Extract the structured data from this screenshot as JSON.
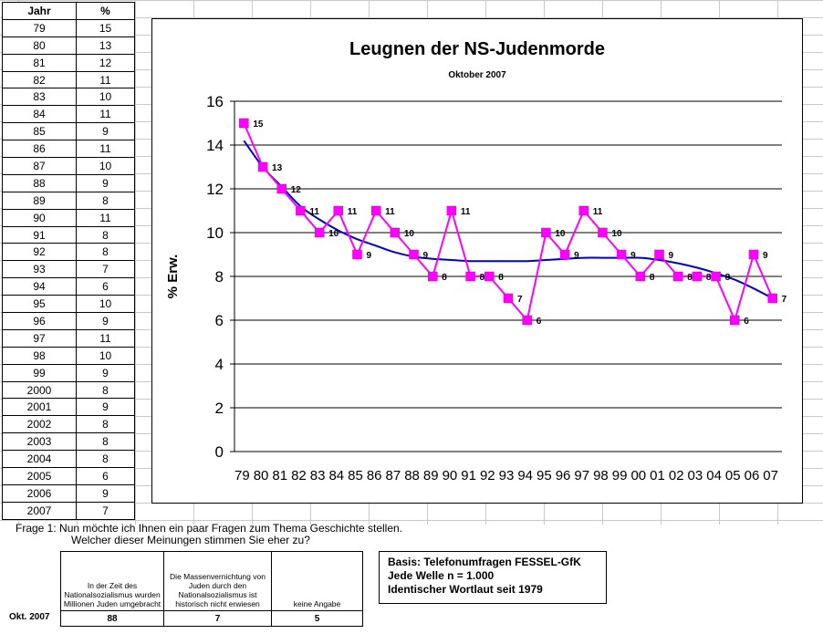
{
  "table": {
    "header_year": "Jahr",
    "header_pct": "%",
    "rows": [
      [
        "79",
        "15"
      ],
      [
        "80",
        "13"
      ],
      [
        "81",
        "12"
      ],
      [
        "82",
        "11"
      ],
      [
        "83",
        "10"
      ],
      [
        "84",
        "11"
      ],
      [
        "85",
        "9"
      ],
      [
        "86",
        "11"
      ],
      [
        "87",
        "10"
      ],
      [
        "88",
        "9"
      ],
      [
        "89",
        "8"
      ],
      [
        "90",
        "11"
      ],
      [
        "91",
        "8"
      ],
      [
        "92",
        "8"
      ],
      [
        "93",
        "7"
      ],
      [
        "94",
        "6"
      ],
      [
        "95",
        "10"
      ],
      [
        "96",
        "9"
      ],
      [
        "97",
        "11"
      ],
      [
        "98",
        "10"
      ],
      [
        "99",
        "9"
      ],
      [
        "2000",
        "8"
      ],
      [
        "2001",
        "9"
      ],
      [
        "2002",
        "8"
      ],
      [
        "2003",
        "8"
      ],
      [
        "2004",
        "8"
      ],
      [
        "2005",
        "6"
      ],
      [
        "2006",
        "9"
      ],
      [
        "2007",
        "7"
      ]
    ]
  },
  "chart_data": {
    "type": "line",
    "title": "Leugnen der NS-Judenmorde",
    "subtitle": "Oktober 2007",
    "ylabel": "% Erw.",
    "xlabel": "",
    "ylim": [
      0,
      16
    ],
    "yticks": [
      0,
      2,
      4,
      6,
      8,
      10,
      12,
      14,
      16
    ],
    "grid": true,
    "categories": [
      "79",
      "80",
      "81",
      "82",
      "83",
      "84",
      "85",
      "86",
      "87",
      "88",
      "89",
      "90",
      "91",
      "92",
      "93",
      "94",
      "95",
      "96",
      "97",
      "98",
      "99",
      "00",
      "01",
      "02",
      "03",
      "04",
      "05",
      "06",
      "07"
    ],
    "series": [
      {
        "values": [
          15,
          13,
          12,
          11,
          10,
          11,
          9,
          11,
          10,
          9,
          8,
          11,
          8,
          8,
          7,
          6,
          10,
          9,
          11,
          10,
          9,
          8,
          9,
          8,
          8,
          8,
          6,
          9,
          7
        ],
        "color": "#ff00ff",
        "marker": "square",
        "data_labels": true
      },
      {
        "kind": "trendline",
        "values": [
          14.2,
          13.0,
          12.1,
          11.2,
          10.6,
          10.1,
          9.7,
          9.4,
          9.1,
          8.9,
          8.8,
          8.75,
          8.7,
          8.7,
          8.7,
          8.7,
          8.75,
          8.8,
          8.85,
          8.85,
          8.85,
          8.85,
          8.75,
          8.6,
          8.4,
          8.15,
          7.85,
          7.45,
          7.0
        ],
        "color": "#0000cc"
      }
    ]
  },
  "notes": {
    "question_line1": "Frage 1: Nun möchte ich Ihnen ein paar Fragen zum Thema Geschichte stellen.",
    "question_line2": "Welcher dieser Meinungen stimmen Sie eher zu?",
    "row_label": "Okt. 2007",
    "answers": [
      {
        "text": "In der Zeit des Nationalsozialismus wurden Millionen Juden umgebracht",
        "value": "88"
      },
      {
        "text": "Die Massenvernichtung von Juden durch den Nationalsozialismus ist historisch nicht erwiesen",
        "value": "7"
      },
      {
        "text": "keine Angabe",
        "value": "5"
      }
    ],
    "basis_line1": "Basis: Telefonumfragen FESSEL-GfK",
    "basis_line2": "Jede Welle n = 1.000",
    "basis_line3": "Identischer Wortlaut seit 1979"
  }
}
